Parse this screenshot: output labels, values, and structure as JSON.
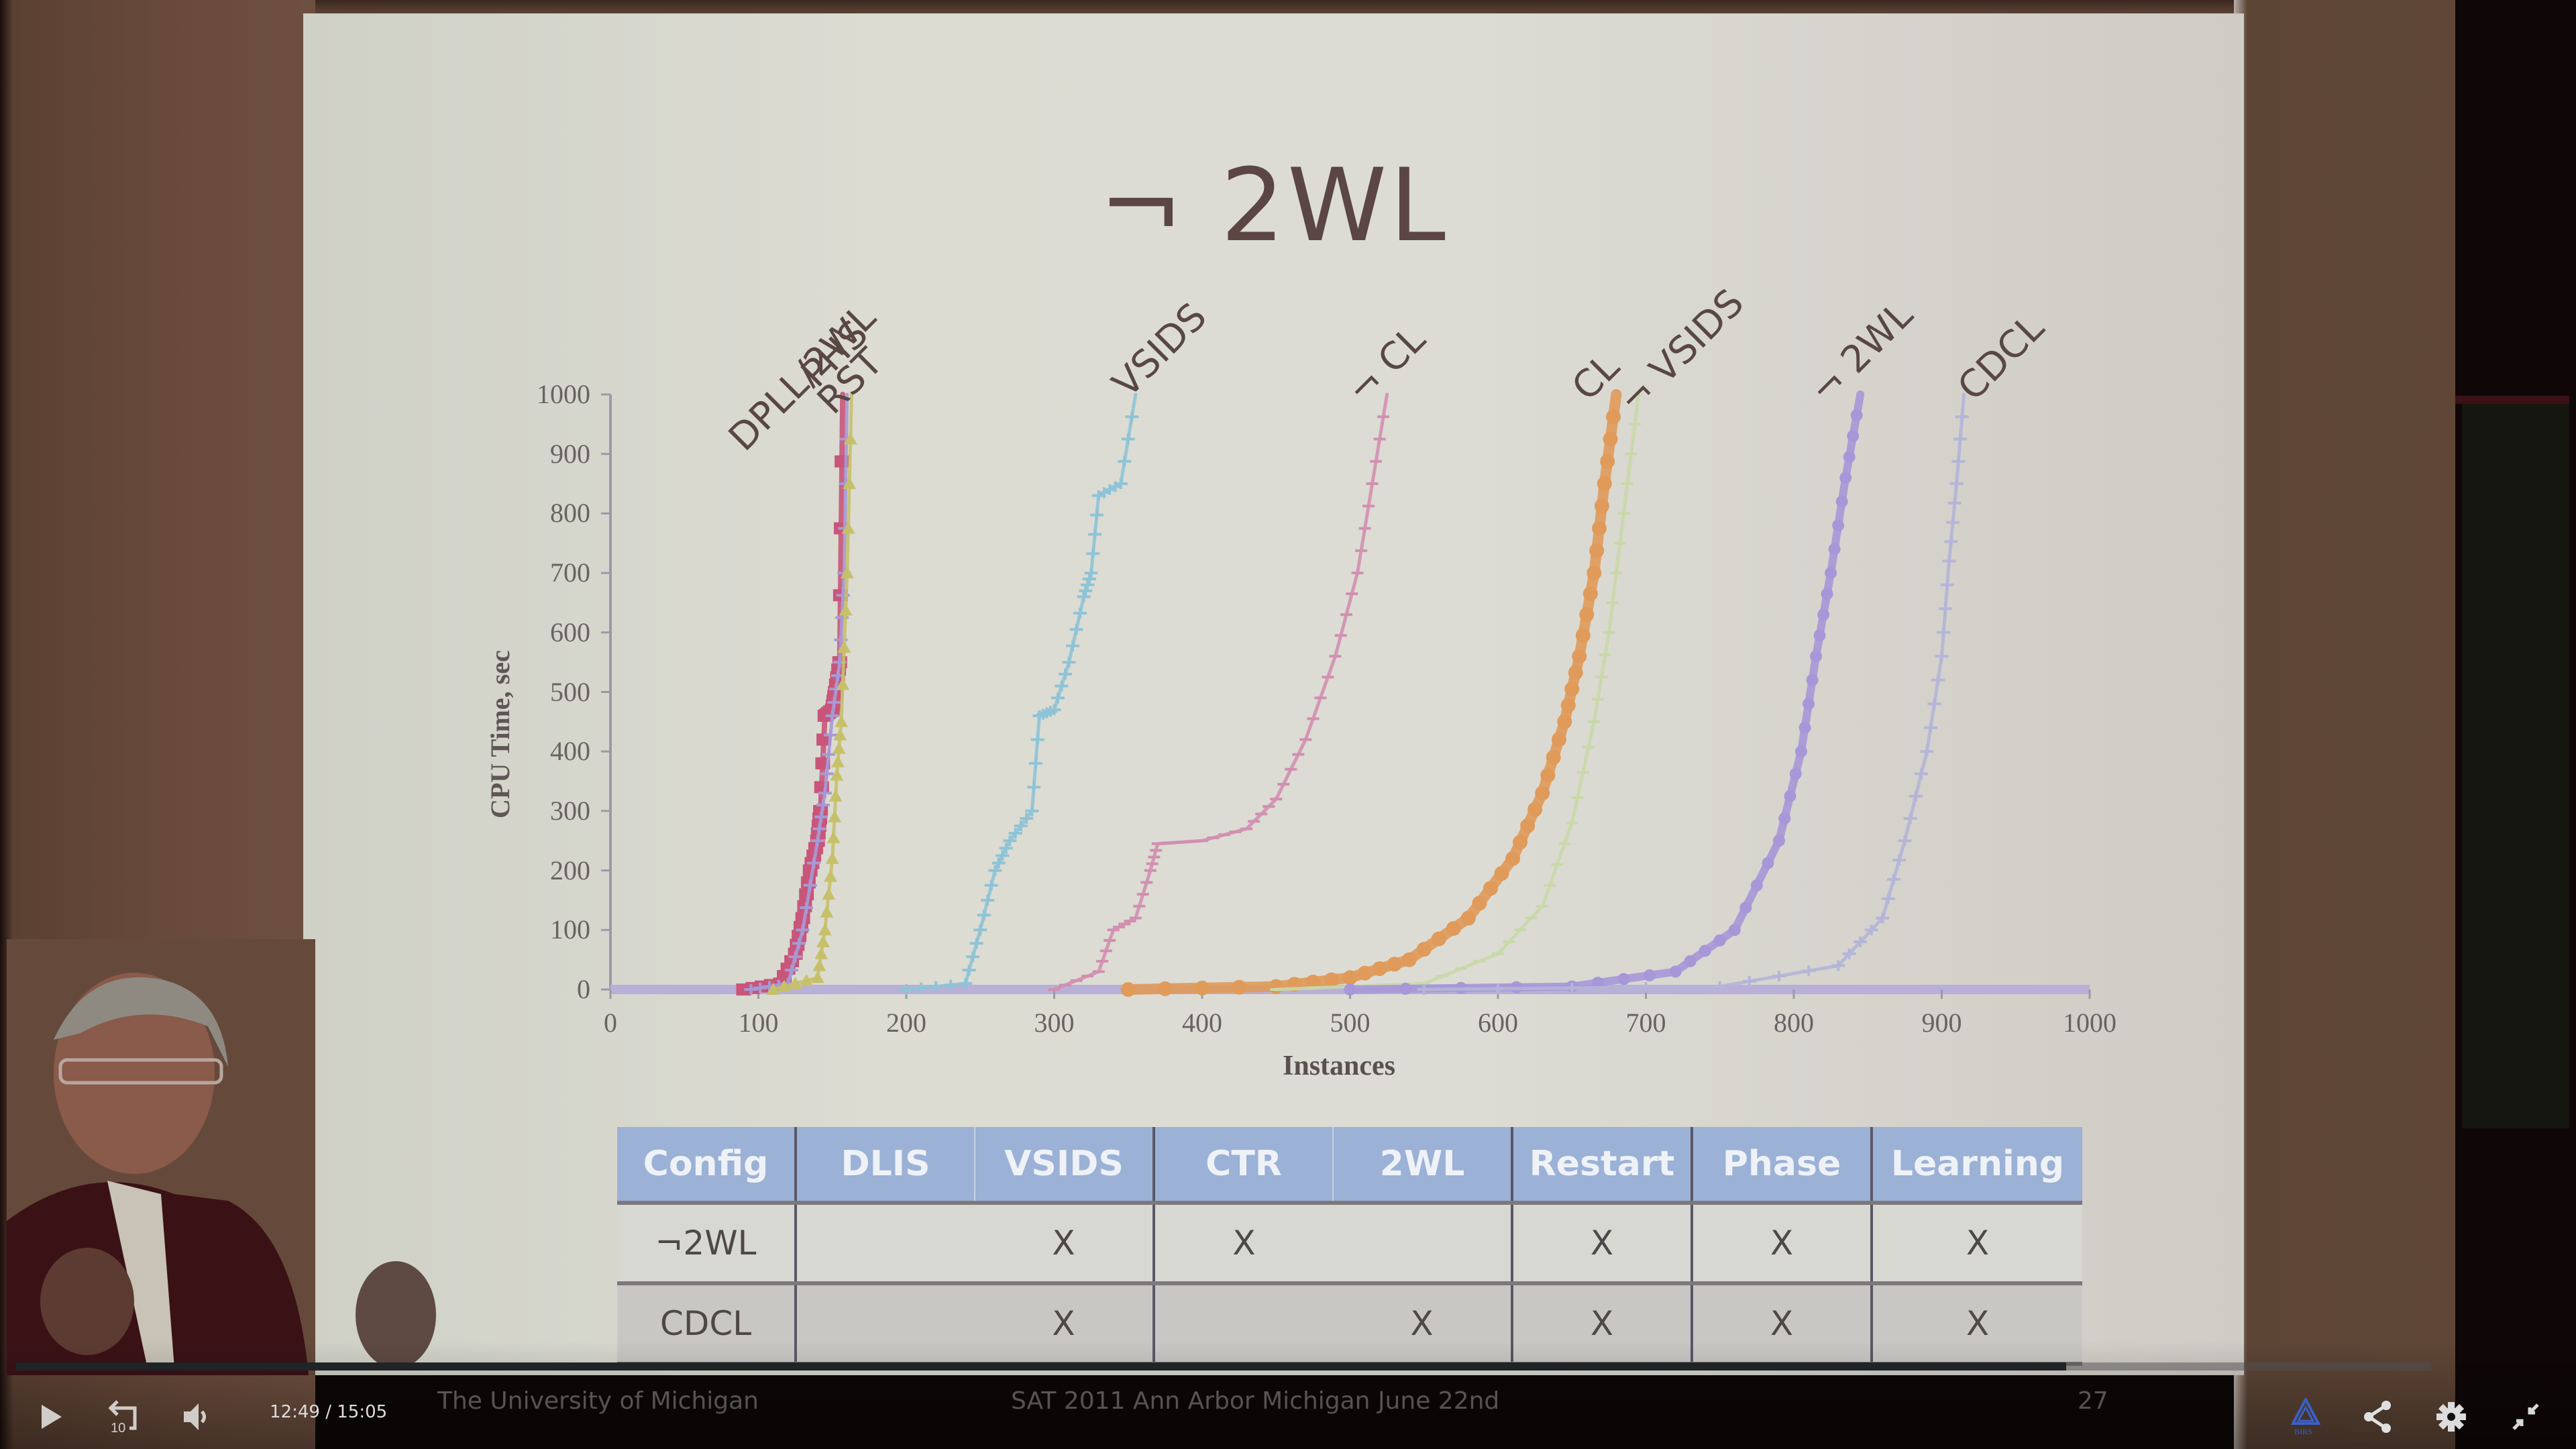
{
  "slide": {
    "title": "¬ 2WL",
    "footer_left": "The University of Michigan",
    "footer_center": "SAT 2011 Ann Arbor Michigan June 22nd",
    "page_number": "27"
  },
  "chart_data": {
    "type": "line",
    "title": "¬ 2WL",
    "xlabel": "Instances",
    "ylabel": "CPU Time, sec",
    "xlim": [
      0,
      1000
    ],
    "ylim": [
      0,
      1000
    ],
    "x_ticks": [
      "0",
      "100",
      "200",
      "300",
      "400",
      "500",
      "600",
      "700",
      "800",
      "900",
      "1000"
    ],
    "y_ticks": [
      "0",
      "100",
      "200",
      "300",
      "400",
      "500",
      "600",
      "700",
      "800",
      "900",
      "1000"
    ],
    "grid": false,
    "legend": "inline labels at curve ends",
    "series": [
      {
        "name": "DPLL/2WL",
        "color": "#c9557a",
        "marker": "square",
        "points": [
          [
            90,
            0
          ],
          [
            115,
            10
          ],
          [
            125,
            60
          ],
          [
            130,
            120
          ],
          [
            135,
            200
          ],
          [
            140,
            250
          ],
          [
            142,
            300
          ],
          [
            145,
            460
          ],
          [
            150,
            470
          ],
          [
            152,
            500
          ],
          [
            155,
            550
          ],
          [
            157,
            1000
          ]
        ]
      },
      {
        "name": "PHS",
        "color": "#a79ad4",
        "marker": "x",
        "points": [
          [
            95,
            0
          ],
          [
            120,
            10
          ],
          [
            130,
            100
          ],
          [
            140,
            250
          ],
          [
            145,
            330
          ],
          [
            150,
            460
          ],
          [
            155,
            550
          ],
          [
            158,
            700
          ],
          [
            160,
            1000
          ]
        ]
      },
      {
        "name": "RST",
        "color": "#c7c06a",
        "marker": "triangle",
        "points": [
          [
            110,
            0
          ],
          [
            140,
            20
          ],
          [
            145,
            100
          ],
          [
            150,
            220
          ],
          [
            153,
            360
          ],
          [
            156,
            450
          ],
          [
            160,
            700
          ],
          [
            163,
            1000
          ]
        ]
      },
      {
        "name": "VSIDS",
        "color": "#8fc3d6",
        "marker": "plus",
        "points": [
          [
            200,
            0
          ],
          [
            240,
            10
          ],
          [
            250,
            100
          ],
          [
            260,
            200
          ],
          [
            270,
            250
          ],
          [
            285,
            300
          ],
          [
            290,
            460
          ],
          [
            300,
            470
          ],
          [
            310,
            550
          ],
          [
            320,
            660
          ],
          [
            325,
            700
          ],
          [
            330,
            830
          ],
          [
            345,
            850
          ],
          [
            355,
            1000
          ]
        ]
      },
      {
        "name": "¬ CL",
        "color": "#d28fb0",
        "marker": "dash",
        "points": [
          [
            300,
            0
          ],
          [
            330,
            30
          ],
          [
            340,
            100
          ],
          [
            355,
            120
          ],
          [
            365,
            200
          ],
          [
            370,
            245
          ],
          [
            400,
            250
          ],
          [
            430,
            270
          ],
          [
            450,
            320
          ],
          [
            470,
            420
          ],
          [
            490,
            560
          ],
          [
            505,
            700
          ],
          [
            515,
            850
          ],
          [
            525,
            1000
          ]
        ]
      },
      {
        "name": "CL",
        "color": "#e09a5a",
        "marker": "circle",
        "points": [
          [
            350,
            0
          ],
          [
            450,
            5
          ],
          [
            500,
            20
          ],
          [
            540,
            50
          ],
          [
            580,
            120
          ],
          [
            610,
            220
          ],
          [
            630,
            330
          ],
          [
            645,
            450
          ],
          [
            655,
            560
          ],
          [
            665,
            700
          ],
          [
            672,
            850
          ],
          [
            680,
            1000
          ]
        ]
      },
      {
        "name": "¬ VSIDS",
        "color": "#c8d8a8",
        "marker": "dash",
        "points": [
          [
            450,
            0
          ],
          [
            550,
            10
          ],
          [
            600,
            60
          ],
          [
            630,
            140
          ],
          [
            650,
            280
          ],
          [
            665,
            450
          ],
          [
            675,
            600
          ],
          [
            685,
            800
          ],
          [
            695,
            1000
          ]
        ]
      },
      {
        "name": "¬ 2WL",
        "color": "#a797d8",
        "marker": "circle",
        "points": [
          [
            500,
            0
          ],
          [
            650,
            5
          ],
          [
            720,
            30
          ],
          [
            760,
            100
          ],
          [
            790,
            250
          ],
          [
            805,
            400
          ],
          [
            815,
            560
          ],
          [
            825,
            700
          ],
          [
            835,
            860
          ],
          [
            845,
            1000
          ]
        ]
      },
      {
        "name": "CDCL",
        "color": "#b4b5d8",
        "marker": "plus",
        "points": [
          [
            550,
            0
          ],
          [
            750,
            5
          ],
          [
            830,
            40
          ],
          [
            860,
            120
          ],
          [
            875,
            250
          ],
          [
            890,
            400
          ],
          [
            900,
            560
          ],
          [
            905,
            720
          ],
          [
            910,
            850
          ],
          [
            915,
            1000
          ]
        ]
      }
    ]
  },
  "table": {
    "headers": [
      "Config",
      "DLIS",
      "VSIDS",
      "CTR",
      "2WL",
      "Restart",
      "Phase",
      "Learning"
    ],
    "rows": [
      [
        "¬2WL",
        "",
        "X",
        "X",
        "",
        "X",
        "X",
        "X"
      ],
      [
        "CDCL",
        "",
        "X",
        "",
        "X",
        "X",
        "X",
        "X"
      ]
    ]
  },
  "player": {
    "current_time": "12:49",
    "separator": "/",
    "duration": "15:05",
    "progress_percent": 84.9,
    "controls": {
      "play": "play-icon",
      "rewind": "rewind-10-icon",
      "rewind_label": "10",
      "volume": "volume-icon",
      "logo": "BIRS",
      "share": "share-icon",
      "settings": "gear-icon",
      "exit_fullscreen": "exit-fullscreen-icon"
    },
    "colors": {
      "played": "#202426",
      "icon": "#d8d8d8",
      "logo": "#3a5fc8"
    }
  }
}
